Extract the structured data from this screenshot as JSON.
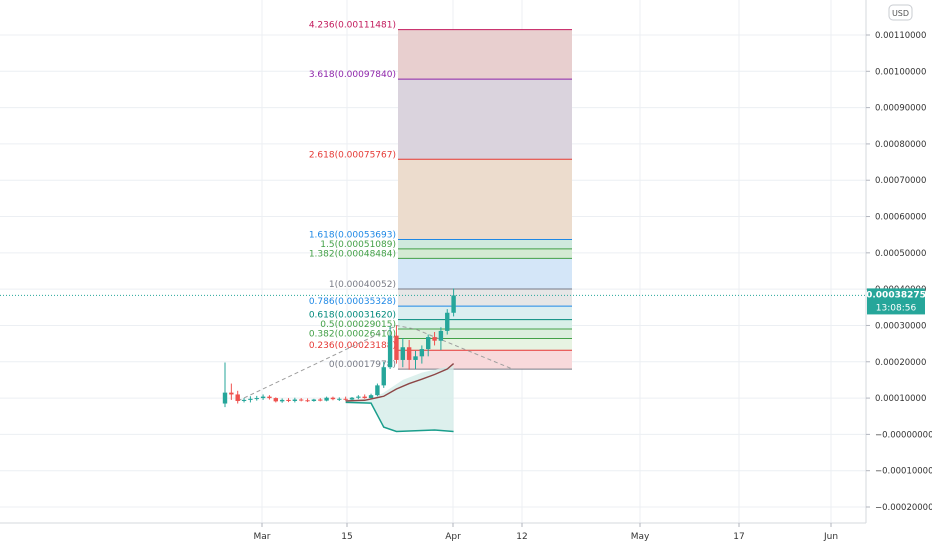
{
  "chart_data": {
    "type": "candlestick",
    "currency": "USD",
    "y_axis": {
      "ticks": [
        "0.00110000",
        "0.00100000",
        "0.00090000",
        "0.00080000",
        "0.00070000",
        "0.00060000",
        "0.00050000",
        "0.00040000",
        "0.00030000",
        "0.00020000",
        "0.00010000",
        "−0.00000000",
        "−0.00010000",
        "−0.00020000"
      ],
      "tick_values": [
        0.0011,
        0.001,
        0.0009,
        0.0008,
        0.0007,
        0.0006,
        0.0005,
        0.0004,
        0.0003,
        0.0002,
        0.0001,
        0,
        -0.0001,
        -0.0002
      ],
      "ylim": [
        -0.00023,
        0.00119
      ]
    },
    "x_axis": {
      "ticks": [
        "Mar",
        "15",
        "Apr",
        "12",
        "May",
        "17",
        "Jun"
      ]
    },
    "last_price": {
      "value": "0.00038275",
      "countdown": "13:08:56",
      "numeric": 0.00038275
    },
    "fibonacci_levels": [
      {
        "label": "4.236(0.00111481)",
        "ratio": 4.236,
        "value": 0.00111481,
        "color": "#c2185b"
      },
      {
        "label": "3.618(0.00097840)",
        "ratio": 3.618,
        "value": 0.0009784,
        "color": "#8e24aa"
      },
      {
        "label": "2.618(0.00075767)",
        "ratio": 2.618,
        "value": 0.00075767,
        "color": "#e53935"
      },
      {
        "label": "1.618(0.00053693)",
        "ratio": 1.618,
        "value": 0.00053693,
        "color": "#1e88e5"
      },
      {
        "label": "1.5(0.00051089)",
        "ratio": 1.5,
        "value": 0.00051089,
        "color": "#43a047"
      },
      {
        "label": "1.382(0.00048484)",
        "ratio": 1.382,
        "value": 0.00048484,
        "color": "#43a047"
      },
      {
        "label": "1(0.00040052)",
        "ratio": 1,
        "value": 0.00040052,
        "color": "#787b86"
      },
      {
        "label": "0.786(0.00035328)",
        "ratio": 0.786,
        "value": 0.00035328,
        "color": "#1e88e5"
      },
      {
        "label": "0.618(0.00031620)",
        "ratio": 0.618,
        "value": 0.0003162,
        "color": "#00897b"
      },
      {
        "label": "0.5(0.00029015)",
        "ratio": 0.5,
        "value": 0.00029015,
        "color": "#43a047"
      },
      {
        "label": "0.382(0.00026410)",
        "ratio": 0.382,
        "value": 0.0002641,
        "color": "#43a047"
      },
      {
        "label": "0.236(0.00023188)",
        "ratio": 0.236,
        "value": 0.00023188,
        "color": "#e53935"
      },
      {
        "label": "0(0.00017978)",
        "ratio": 0,
        "value": 0.00017978,
        "color": "#787b86"
      }
    ],
    "fib_zone_colors": {
      "4.236-3.618": "#e8cfcf",
      "3.618-2.618": "#dad3dd",
      "2.618-1.618": "#ecdccd",
      "1.618-1.5": "#cfe9dd",
      "1.5-1.382": "#d3ead3",
      "1.382-1": "#d4e6f8",
      "1-0.786": "#e6e6e6",
      "0.786-0.618": "#dbeef0",
      "0.618-0.5": "#d8efe8",
      "0.5-0.382": "#dceedd",
      "0.382-0.236": "#e7f3e2",
      "0.236-0": "#f8d9db"
    },
    "candles": [
      {
        "o": 8.5e-05,
        "h": 0.000198,
        "l": 7.5e-05,
        "c": 0.000115
      },
      {
        "o": 0.000115,
        "h": 0.00014,
        "l": 9.5e-05,
        "c": 0.00011
      },
      {
        "o": 0.00011,
        "h": 0.00012,
        "l": 8.5e-05,
        "c": 9.2e-05
      },
      {
        "o": 9.2e-05,
        "h": 0.0001,
        "l": 8.8e-05,
        "c": 9.5e-05
      },
      {
        "o": 9.5e-05,
        "h": 0.000105,
        "l": 8.8e-05,
        "c": 9.8e-05
      },
      {
        "o": 9.8e-05,
        "h": 0.000106,
        "l": 9.3e-05,
        "c": 0.0001
      },
      {
        "o": 0.0001,
        "h": 0.00011,
        "l": 9.5e-05,
        "c": 0.000104
      },
      {
        "o": 0.000104,
        "h": 0.000108,
        "l": 9.6e-05,
        "c": 0.0001
      },
      {
        "o": 0.0001,
        "h": 0.000102,
        "l": 8.8e-05,
        "c": 9.1e-05
      },
      {
        "o": 9.1e-05,
        "h": 9.9e-05,
        "l": 8.7e-05,
        "c": 9.5e-05
      },
      {
        "o": 9.5e-05,
        "h": 0.0001,
        "l": 8.9e-05,
        "c": 9.2e-05
      },
      {
        "o": 9.2e-05,
        "h": 0.000101,
        "l": 8.8e-05,
        "c": 9.6e-05
      },
      {
        "o": 9.6e-05,
        "h": 0.0001,
        "l": 9.1e-05,
        "c": 9.4e-05
      },
      {
        "o": 9.4e-05,
        "h": 9.9e-05,
        "l": 8.9e-05,
        "c": 9.2e-05
      },
      {
        "o": 9.2e-05,
        "h": 9.8e-05,
        "l": 9e-05,
        "c": 9.6e-05
      },
      {
        "o": 9.6e-05,
        "h": 0.0001,
        "l": 9.1e-05,
        "c": 9.3e-05
      },
      {
        "o": 9.3e-05,
        "h": 0.000104,
        "l": 9.1e-05,
        "c": 0.000101
      },
      {
        "o": 0.000101,
        "h": 0.000104,
        "l": 9.4e-05,
        "c": 9.7e-05
      },
      {
        "o": 9.7e-05,
        "h": 0.000102,
        "l": 9.2e-05,
        "c": 9.8e-05
      },
      {
        "o": 9.8e-05,
        "h": 0.000104,
        "l": 9.3e-05,
        "c": 9.6e-05
      },
      {
        "o": 9.6e-05,
        "h": 0.000103,
        "l": 9.3e-05,
        "c": 0.000101
      },
      {
        "o": 0.000101,
        "h": 0.000108,
        "l": 9.7e-05,
        "c": 0.000104
      },
      {
        "o": 0.000104,
        "h": 0.00011,
        "l": 9.8e-05,
        "c": 0.0001
      },
      {
        "o": 0.0001,
        "h": 0.000112,
        "l": 9.7e-05,
        "c": 0.000108
      },
      {
        "o": 0.000108,
        "h": 0.00014,
        "l": 0.000105,
        "c": 0.000135
      },
      {
        "o": 0.000135,
        "h": 0.0002,
        "l": 0.000128,
        "c": 0.000185
      },
      {
        "o": 0.000185,
        "h": 0.000298,
        "l": 0.00018,
        "c": 0.000272
      },
      {
        "o": 0.000272,
        "h": 0.0003,
        "l": 0.000195,
        "c": 0.000205
      },
      {
        "o": 0.000205,
        "h": 0.000265,
        "l": 0.000185,
        "c": 0.00024
      },
      {
        "o": 0.00024,
        "h": 0.00026,
        "l": 0.000178,
        "c": 0.000205
      },
      {
        "o": 0.000205,
        "h": 0.00023,
        "l": 0.00018,
        "c": 0.000215
      },
      {
        "o": 0.000215,
        "h": 0.000245,
        "l": 0.000195,
        "c": 0.000235
      },
      {
        "o": 0.000235,
        "h": 0.000275,
        "l": 0.000215,
        "c": 0.000268
      },
      {
        "o": 0.000268,
        "h": 0.000282,
        "l": 0.000245,
        "c": 0.000258
      },
      {
        "o": 0.000258,
        "h": 0.000295,
        "l": 0.000232,
        "c": 0.000285
      },
      {
        "o": 0.000285,
        "h": 0.000345,
        "l": 0.000275,
        "c": 0.000335
      },
      {
        "o": 0.000335,
        "h": 0.000402,
        "l": 0.000325,
        "c": 0.00038275
      }
    ],
    "moving_average": [
      {
        "i": 19,
        "v": 9.2e-05
      },
      {
        "i": 22,
        "v": 9.4e-05
      },
      {
        "i": 25,
        "v": 0.000105
      },
      {
        "i": 27,
        "v": 0.000125
      },
      {
        "i": 29,
        "v": 0.00014
      },
      {
        "i": 31,
        "v": 0.000152
      },
      {
        "i": 33,
        "v": 0.000165
      },
      {
        "i": 35,
        "v": 0.00018
      },
      {
        "i": 36,
        "v": 0.000195
      }
    ],
    "cloud_lower": [
      {
        "i": 19,
        "v": 8.8e-05
      },
      {
        "i": 23,
        "v": 8.6e-05
      },
      {
        "i": 25,
        "v": 2e-05
      },
      {
        "i": 27,
        "v": 8e-06
      },
      {
        "i": 30,
        "v": 1e-05
      },
      {
        "i": 33,
        "v": 1.2e-05
      },
      {
        "i": 36,
        "v": 8e-06
      }
    ],
    "cloud_upper": [
      {
        "i": 19,
        "v": 9.5e-05
      },
      {
        "i": 23,
        "v": 9.8e-05
      },
      {
        "i": 25,
        "v": 0.000115
      },
      {
        "i": 28,
        "v": 0.00015
      },
      {
        "i": 31,
        "v": 0.00017
      },
      {
        "i": 36,
        "v": 0.00019
      }
    ],
    "trend_path": [
      {
        "i": 2,
        "v": 9.2e-05
      },
      {
        "i": 27,
        "v": 0.0003
      },
      {
        "i": 30,
        "v": 0.00029
      },
      {
        "i": 45,
        "v": 0.000182
      }
    ],
    "colors": {
      "up": "#26a69a",
      "down": "#ef5350",
      "ma": "#8d4646",
      "cloud_line": "#1a9e8c",
      "cloud_fill": "#d5ece8",
      "price_label": "#26a69a",
      "grid": "#eceff3",
      "axis_text": "#333333"
    }
  }
}
